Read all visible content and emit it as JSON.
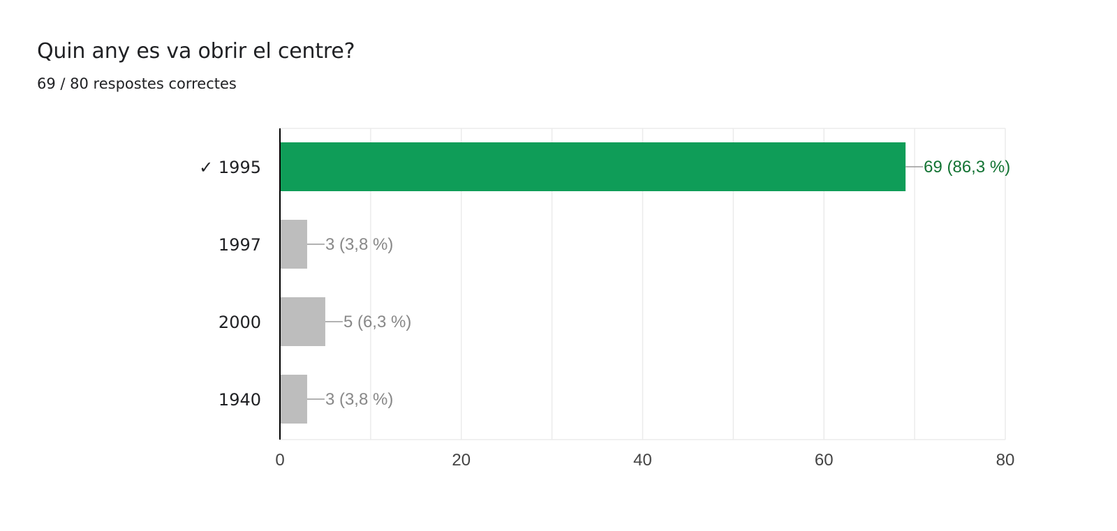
{
  "question": {
    "title": "Quin any es va obrir el centre?",
    "summary": "69 / 80 respostes correctes"
  },
  "chart_data": {
    "type": "bar",
    "orientation": "horizontal",
    "categories": [
      "1995",
      "1997",
      "2000",
      "1940"
    ],
    "category_labels": [
      "✓ 1995",
      "1997",
      "2000",
      "1940"
    ],
    "correct": [
      true,
      false,
      false,
      false
    ],
    "values": [
      69,
      3,
      5,
      3
    ],
    "data_labels": [
      "69 (86,3 %)",
      "3 (3,8 %)",
      "5 (6,3 %)",
      "3 (3,8 %)"
    ],
    "xlim": [
      0,
      80
    ],
    "xticks": [
      0,
      20,
      40,
      60,
      80
    ],
    "grid": true,
    "legend": "none",
    "colors": {
      "correct_bar": "#0f9d58",
      "incorrect_bar": "#bdbdbd",
      "correct_label": "#137333",
      "incorrect_label": "#888888",
      "grid": "#ebebeb",
      "axis": "#000000"
    }
  }
}
